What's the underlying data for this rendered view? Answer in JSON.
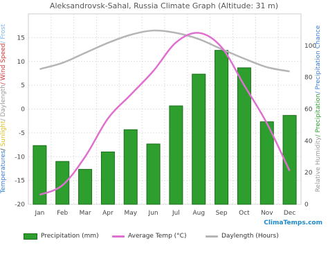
{
  "title": "Aleksandrovsk-Sahal, Russia Climate Graph (Altitude: 31 m)",
  "left_axis_label": [
    {
      "text": "Temperatures",
      "color": "#3a7fd6"
    },
    {
      "text": "/ ",
      "color": "#333333"
    },
    {
      "text": "Sunlight",
      "color": "#e0c020"
    },
    {
      "text": "/ Daylength",
      "color": "#9a9a9a"
    },
    {
      "text": "/ Wind Speed",
      "color": "#d43a3a"
    },
    {
      "text": "/ Frost",
      "color": "#7fb5e6"
    }
  ],
  "right_axis_label": [
    {
      "text": "Relative Humidity",
      "color": "#9a9a9a"
    },
    {
      "text": "/ Precipitation",
      "color": "#2e9e2e"
    },
    {
      "text": "/ Precipitation Chance",
      "color": "#3a7fd6"
    }
  ],
  "watermark": "ClimaTemps.com",
  "legend": [
    {
      "label": "Precipitation (mm)",
      "kind": "box",
      "color": "#2e9e2e"
    },
    {
      "label": "Average Temp (°C)",
      "kind": "line",
      "color": "#e070d0"
    },
    {
      "label": "Daylength (Hours)",
      "kind": "line",
      "color": "#b5b5b5"
    }
  ],
  "chart_data": {
    "type": "bar",
    "categories": [
      "Jan",
      "Feb",
      "Mar",
      "Apr",
      "May",
      "Jun",
      "Jul",
      "Aug",
      "Sep",
      "Oct",
      "Nov",
      "Dec"
    ],
    "y_left": {
      "ylim": [
        -20,
        20
      ],
      "ticks": [
        -20,
        -15,
        -10,
        -5,
        0,
        5,
        10,
        15
      ]
    },
    "y_right": {
      "ylim": [
        0,
        120
      ],
      "ticks": [
        0,
        20,
        40,
        60,
        80,
        100
      ]
    },
    "grid": true,
    "series": [
      {
        "name": "Precipitation (mm)",
        "type": "bar",
        "axis": "right",
        "color": "#2e9e2e",
        "values": [
          37,
          27,
          22,
          33,
          47,
          38,
          62,
          82,
          97,
          86,
          52,
          56
        ]
      },
      {
        "name": "Average Temp (°C)",
        "type": "line",
        "axis": "left",
        "color": "#e070d0",
        "values": [
          -18,
          -16,
          -10,
          -2,
          3,
          8,
          14,
          16,
          13,
          5,
          -3,
          -13
        ]
      },
      {
        "name": "Daylength (Hours)",
        "type": "line",
        "axis": "left",
        "color": "#b5b5b5",
        "values": [
          8.4,
          9.7,
          11.8,
          13.9,
          15.6,
          16.5,
          16.0,
          14.7,
          12.6,
          10.6,
          8.8,
          7.9
        ]
      }
    ]
  }
}
